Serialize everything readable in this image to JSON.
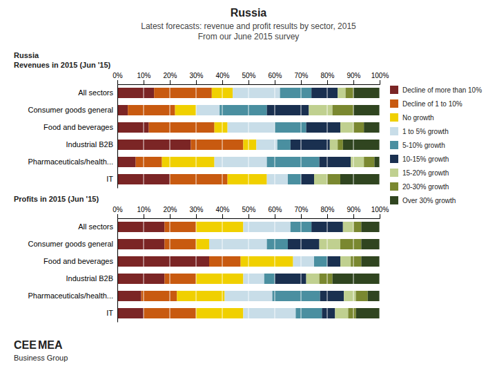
{
  "title": "Russia",
  "subtitle": [
    "Latest forecasts: revenue and profit results by sector, 2015",
    "From our June 2015 survey"
  ],
  "annotations": [
    "CEE",
    "MEA",
    "Business Group"
  ],
  "chart_data": [
    {
      "type": "bar",
      "orientation": "horizontal",
      "stacked": true,
      "grid": true,
      "legend": "right",
      "title": [
        "Russia",
        "Revenues in 2015 (Jun '15)"
      ],
      "categories": [
        "All sectors",
        "Consumer goods general",
        "Food and beverages",
        "Industrial B2B",
        "Pharmaceuticals/health...",
        "IT"
      ],
      "xlim": [
        0,
        100
      ],
      "xticks": [
        {
          "value": 0,
          "label": "0%"
        },
        {
          "value": 10,
          "label": "10%"
        },
        {
          "value": 20,
          "label": "20%"
        },
        {
          "value": 30,
          "label": "30%"
        },
        {
          "value": 40,
          "label": "40%"
        },
        {
          "value": 50,
          "label": "50%"
        },
        {
          "value": 60,
          "label": "60%"
        },
        {
          "value": 70,
          "label": "70%"
        },
        {
          "value": 80,
          "label": "80%"
        },
        {
          "value": 90,
          "label": "90%"
        },
        {
          "value": 100,
          "label": "100%"
        }
      ],
      "series": [
        {
          "name": "Decline of more than 10%",
          "color": "#7B2525",
          "values": [
            14,
            4,
            12,
            28,
            7,
            20
          ]
        },
        {
          "name": "Decline of 1 to 10%",
          "color": "#C85A10",
          "values": [
            22,
            18,
            25,
            20,
            10,
            22
          ]
        },
        {
          "name": "No growth",
          "color": "#F0D000",
          "values": [
            8,
            8,
            5,
            5,
            20,
            15
          ]
        },
        {
          "name": "1 to 5% growth",
          "color": "#C8DDE8",
          "values": [
            18,
            9,
            18,
            8,
            20,
            8
          ]
        },
        {
          "name": "5-10% growth",
          "color": "#4A8FA0",
          "values": [
            12,
            18,
            12,
            5,
            20,
            5
          ]
        },
        {
          "name": "10-15% growth",
          "color": "#1A3050",
          "values": [
            10,
            16,
            13,
            15,
            12,
            5
          ]
        },
        {
          "name": "15-20% growth",
          "color": "#C0D090",
          "values": [
            3,
            9,
            5,
            3,
            5,
            5
          ]
        },
        {
          "name": "20-30% growth",
          "color": "#7A8830",
          "values": [
            3,
            8,
            4,
            2,
            4,
            5
          ]
        },
        {
          "name": "Over 30% growth",
          "color": "#304520",
          "values": [
            10,
            10,
            6,
            14,
            2,
            15
          ]
        }
      ]
    },
    {
      "type": "bar",
      "orientation": "horizontal",
      "stacked": true,
      "grid": true,
      "title": "Profits in 2015 (Jun '15)",
      "categories": [
        "All sectors",
        "Consumer goods general",
        "Food and beverages",
        "Industrial B2B",
        "Pharmaceuticals/health...",
        "IT"
      ],
      "xlim": [
        0,
        100
      ],
      "xticks": [
        {
          "value": 0,
          "label": "0%"
        },
        {
          "value": 10,
          "label": "10%"
        },
        {
          "value": 20,
          "label": "20%"
        },
        {
          "value": 30,
          "label": "30%"
        },
        {
          "value": 40,
          "label": "40%"
        },
        {
          "value": 50,
          "label": "50%"
        },
        {
          "value": 60,
          "label": "60%"
        },
        {
          "value": 70,
          "label": "70%"
        },
        {
          "value": 80,
          "label": "80%"
        },
        {
          "value": 90,
          "label": "90%"
        },
        {
          "value": 100,
          "label": "100%"
        }
      ],
      "series": [
        {
          "name": "Decline of more than 10%",
          "color": "#7B2525",
          "values": [
            18,
            18,
            35,
            18,
            9.090909090909092,
            10
          ]
        },
        {
          "name": "Decline of 1 to 10%",
          "color": "#C85A10",
          "values": [
            12,
            12,
            12,
            12,
            13.636363636363637,
            20
          ]
        },
        {
          "name": "No growth",
          "color": "#F0D000",
          "values": [
            18,
            5,
            20,
            18,
            18.181818181818183,
            18
          ]
        },
        {
          "name": "1 to 5% growth",
          "color": "#C8DDE8",
          "values": [
            18,
            22,
            8,
            8,
            18.181818181818183,
            20
          ]
        },
        {
          "name": "5-10% growth",
          "color": "#4A8FA0",
          "values": [
            8,
            8,
            5,
            4,
            18.181818181818183,
            10
          ]
        },
        {
          "name": "10-15% growth",
          "color": "#1A3050",
          "values": [
            12,
            12,
            5,
            12,
            9.090909090909092,
            5
          ]
        },
        {
          "name": "15-20% growth",
          "color": "#C0D090",
          "values": [
            4,
            8,
            4,
            5,
            4.545454545454546,
            5
          ]
        },
        {
          "name": "20-30% growth",
          "color": "#7A8830",
          "values": [
            3,
            8,
            4,
            5,
            4.545454545454546,
            3
          ]
        },
        {
          "name": "Over 30% growth",
          "color": "#304520",
          "values": [
            7,
            7,
            7,
            18,
            4.545454545454546,
            9
          ]
        }
      ]
    }
  ]
}
